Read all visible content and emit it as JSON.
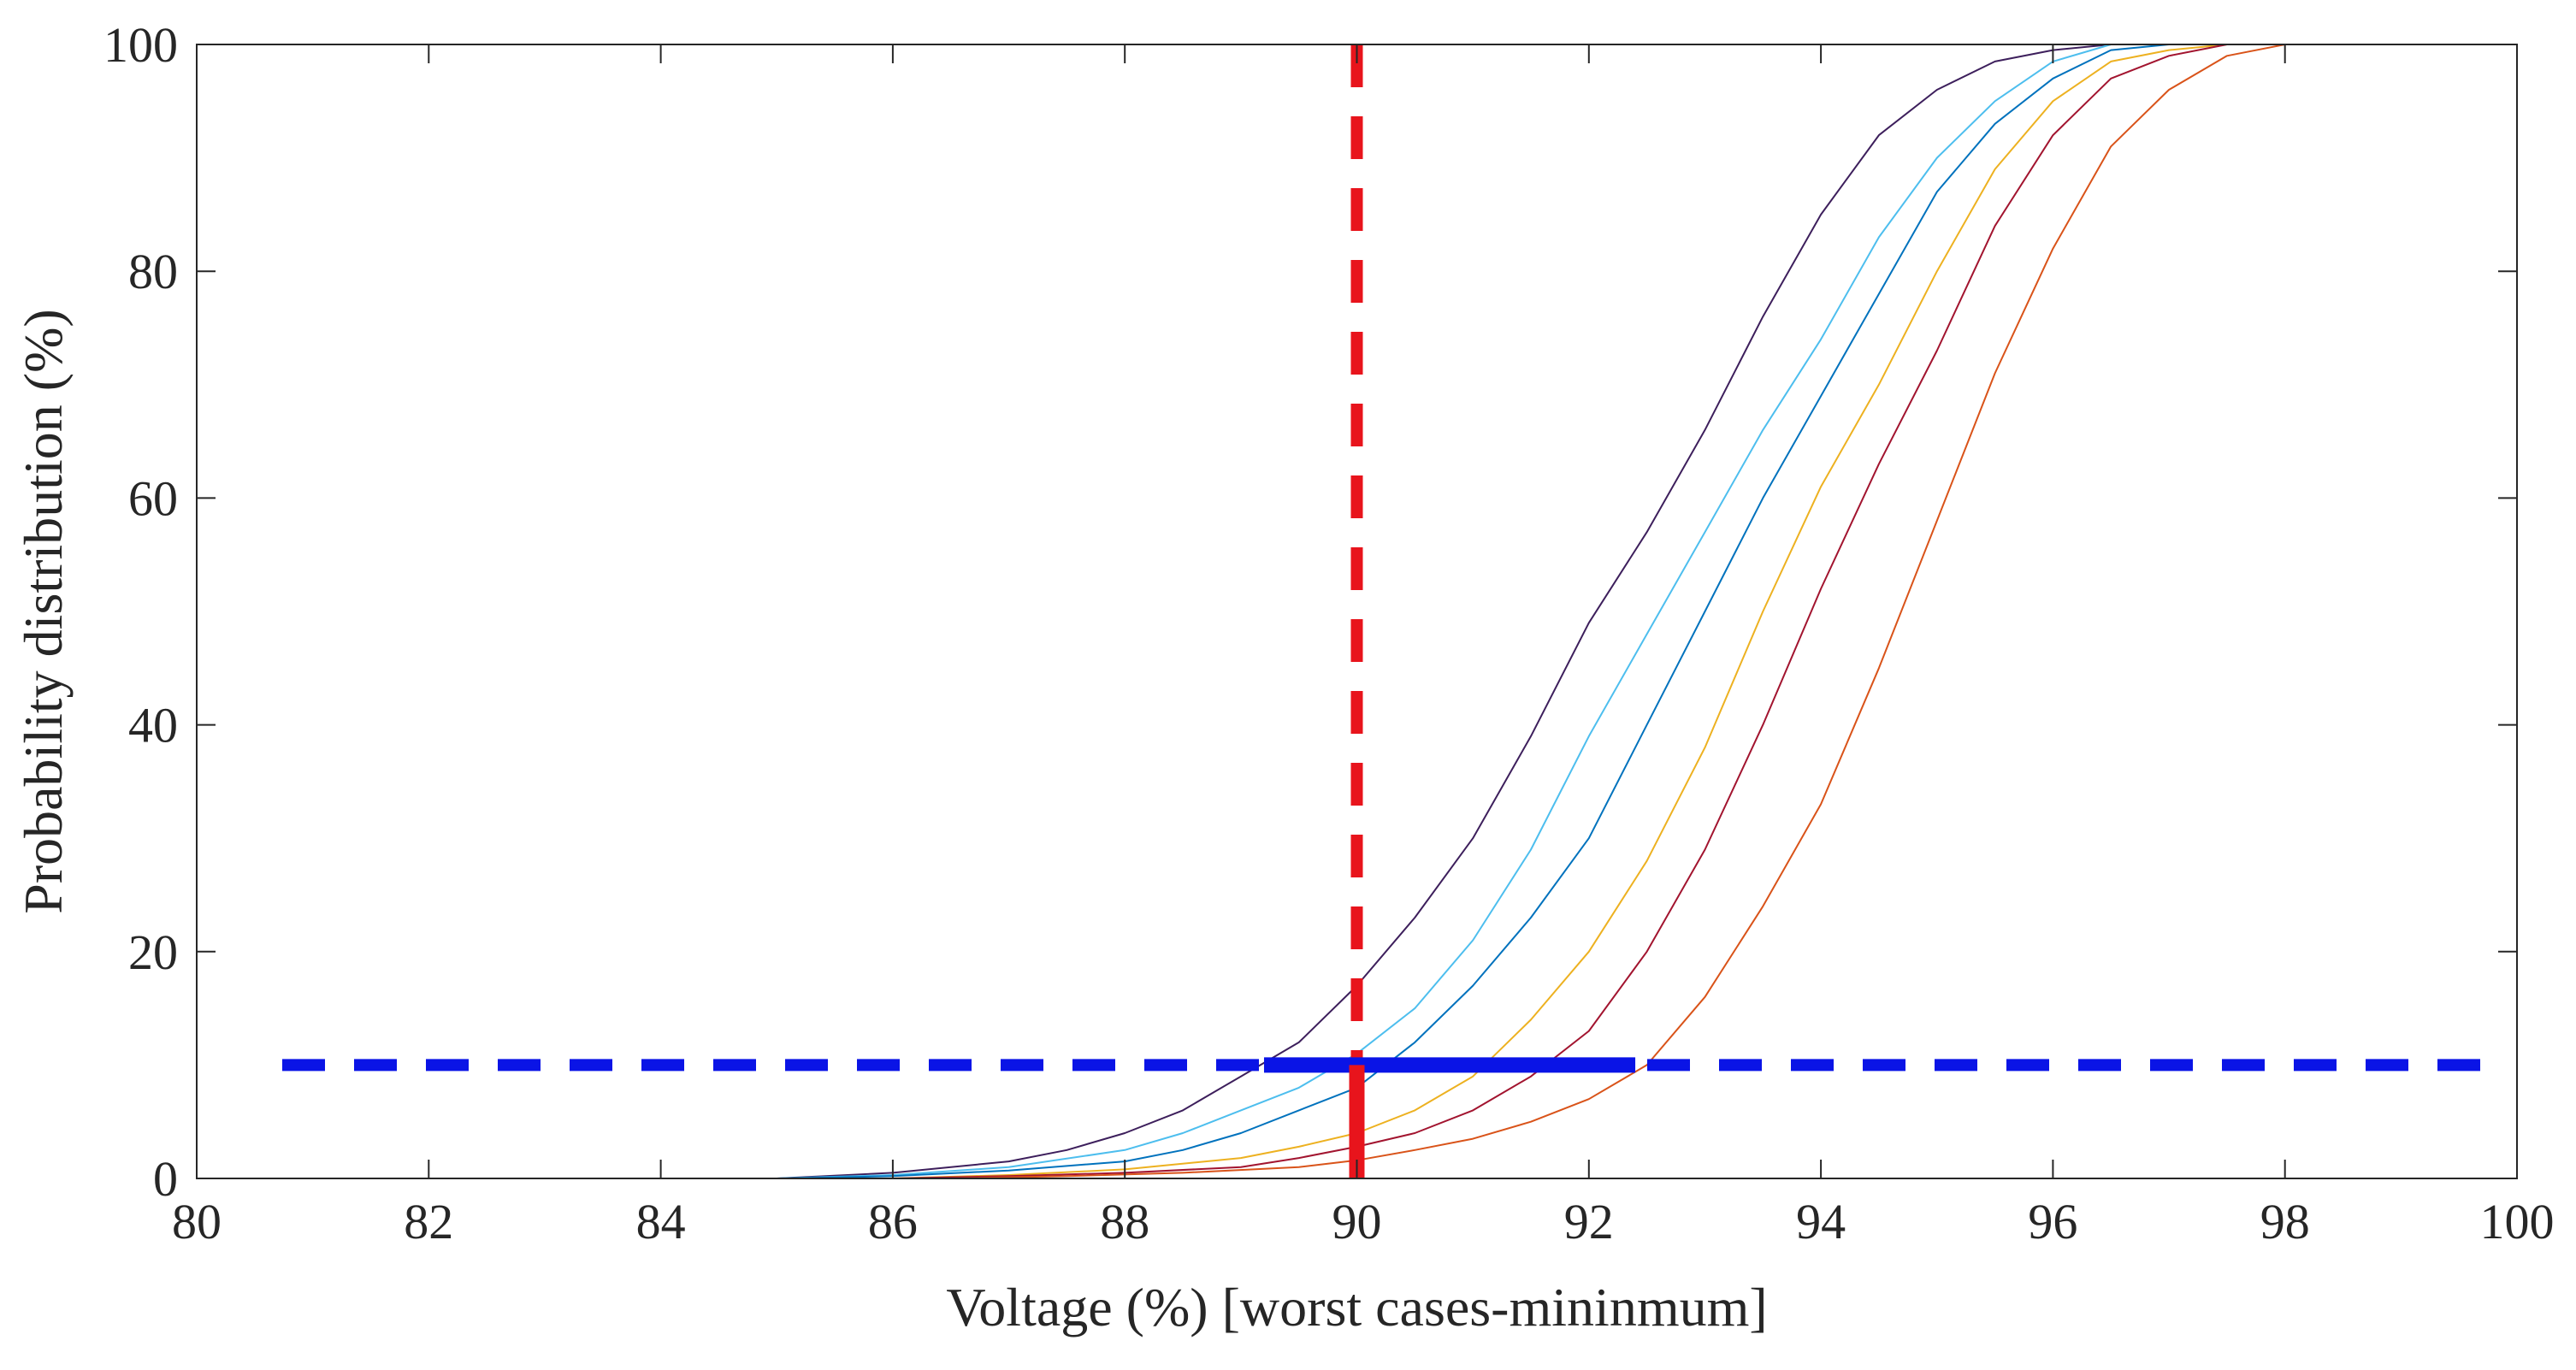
{
  "chart_data": {
    "type": "line",
    "title": "",
    "xlabel": "Voltage (%) [worst cases-mininmum]",
    "ylabel": "Probability distribution (%)",
    "xlim": [
      80,
      100
    ],
    "ylim": [
      0,
      100
    ],
    "xticks": [
      80,
      82,
      84,
      86,
      88,
      90,
      92,
      94,
      96,
      98,
      100
    ],
    "yticks": [
      0,
      20,
      40,
      60,
      80,
      100
    ],
    "xtick_labels": [
      "80",
      "82",
      "84",
      "86",
      "88",
      "90",
      "92",
      "94",
      "96",
      "98",
      "100"
    ],
    "ytick_labels": [
      "0",
      "20",
      "40",
      "60",
      "80",
      "100"
    ],
    "grid": false,
    "series": [
      {
        "name": "curve-1",
        "color": "#3d1f5c",
        "x": [
          85.0,
          86.0,
          87.0,
          87.5,
          88.0,
          88.5,
          89.0,
          89.5,
          90.0,
          90.5,
          91.0,
          91.5,
          92.0,
          92.5,
          93.0,
          93.5,
          94.0,
          94.5,
          95.0,
          95.5,
          96.0,
          96.5,
          97.0
        ],
        "y": [
          0,
          0.5,
          1.5,
          2.5,
          4,
          6,
          9,
          12,
          17,
          23,
          30,
          39,
          49,
          57,
          66,
          76,
          85,
          92,
          96,
          98.5,
          99.5,
          100,
          100
        ]
      },
      {
        "name": "curve-2",
        "color": "#4dbeee",
        "x": [
          85.0,
          86.0,
          87.0,
          88.0,
          88.5,
          89.0,
          89.5,
          90.0,
          90.5,
          91.0,
          91.5,
          92.0,
          92.5,
          93.0,
          93.5,
          94.0,
          94.5,
          95.0,
          95.5,
          96.0,
          96.5,
          97.0
        ],
        "y": [
          0,
          0.3,
          1,
          2.5,
          4,
          6,
          8,
          11,
          15,
          21,
          29,
          39,
          48,
          57,
          66,
          74,
          83,
          90,
          95,
          98.5,
          100,
          100
        ]
      },
      {
        "name": "curve-3",
        "color": "#0072bd",
        "x": [
          85.0,
          86.0,
          87.0,
          88.0,
          88.5,
          89.0,
          89.5,
          90.0,
          90.5,
          91.0,
          91.5,
          92.0,
          92.5,
          93.0,
          93.5,
          94.0,
          94.5,
          95.0,
          95.5,
          96.0,
          96.5,
          97.0,
          97.5
        ],
        "y": [
          0,
          0.2,
          0.7,
          1.5,
          2.5,
          4,
          6,
          8,
          12,
          17,
          23,
          30,
          40,
          50,
          60,
          69,
          78,
          87,
          93,
          97,
          99.5,
          100,
          100
        ]
      },
      {
        "name": "curve-4",
        "color": "#edb120",
        "x": [
          86.0,
          87.0,
          88.0,
          89.0,
          89.5,
          90.0,
          90.5,
          91.0,
          91.5,
          92.0,
          92.5,
          93.0,
          93.5,
          94.0,
          94.5,
          95.0,
          95.5,
          96.0,
          96.5,
          97.0,
          97.5,
          98.0
        ],
        "y": [
          0,
          0.3,
          0.8,
          1.8,
          2.8,
          4,
          6,
          9,
          14,
          20,
          28,
          38,
          50,
          61,
          70,
          80,
          89,
          95,
          98.5,
          99.5,
          100,
          100
        ]
      },
      {
        "name": "curve-5",
        "color": "#a2142f",
        "x": [
          86.0,
          87.0,
          88.0,
          89.0,
          89.5,
          90.0,
          90.5,
          91.0,
          91.5,
          92.0,
          92.5,
          93.0,
          93.5,
          94.0,
          94.5,
          95.0,
          95.5,
          96.0,
          96.5,
          97.0,
          97.5,
          98.0
        ],
        "y": [
          0,
          0.2,
          0.5,
          1,
          1.8,
          2.8,
          4,
          6,
          9,
          13,
          20,
          29,
          40,
          52,
          63,
          73,
          84,
          92,
          97,
          99,
          100,
          100
        ]
      },
      {
        "name": "curve-6",
        "color": "#d95319",
        "x": [
          86.5,
          87.5,
          88.5,
          89.5,
          90.0,
          90.5,
          91.0,
          91.5,
          92.0,
          92.5,
          93.0,
          93.5,
          94.0,
          94.5,
          95.0,
          95.5,
          96.0,
          96.5,
          97.0,
          97.5,
          98.0,
          98.3
        ],
        "y": [
          0,
          0.2,
          0.5,
          1,
          1.6,
          2.5,
          3.5,
          5,
          7,
          10,
          16,
          24,
          33,
          45,
          58,
          71,
          82,
          91,
          96,
          99,
          100,
          100
        ]
      }
    ],
    "reference_lines": [
      {
        "name": "voltage-limit-90",
        "orientation": "vertical",
        "value": 90,
        "style": "dashed",
        "color": "#e8141c"
      },
      {
        "name": "probability-limit-10",
        "orientation": "horizontal",
        "value": 10,
        "style": "dashed",
        "color": "#0a14e6"
      }
    ],
    "highlight_segments": [
      {
        "name": "probability-range",
        "orientation": "horizontal",
        "y": 10,
        "x_range": [
          89.2,
          92.4
        ],
        "color": "#0a14e6"
      },
      {
        "name": "voltage-marker",
        "orientation": "vertical",
        "x": 90,
        "y_range": [
          0,
          10
        ],
        "color": "#e8141c"
      }
    ]
  }
}
